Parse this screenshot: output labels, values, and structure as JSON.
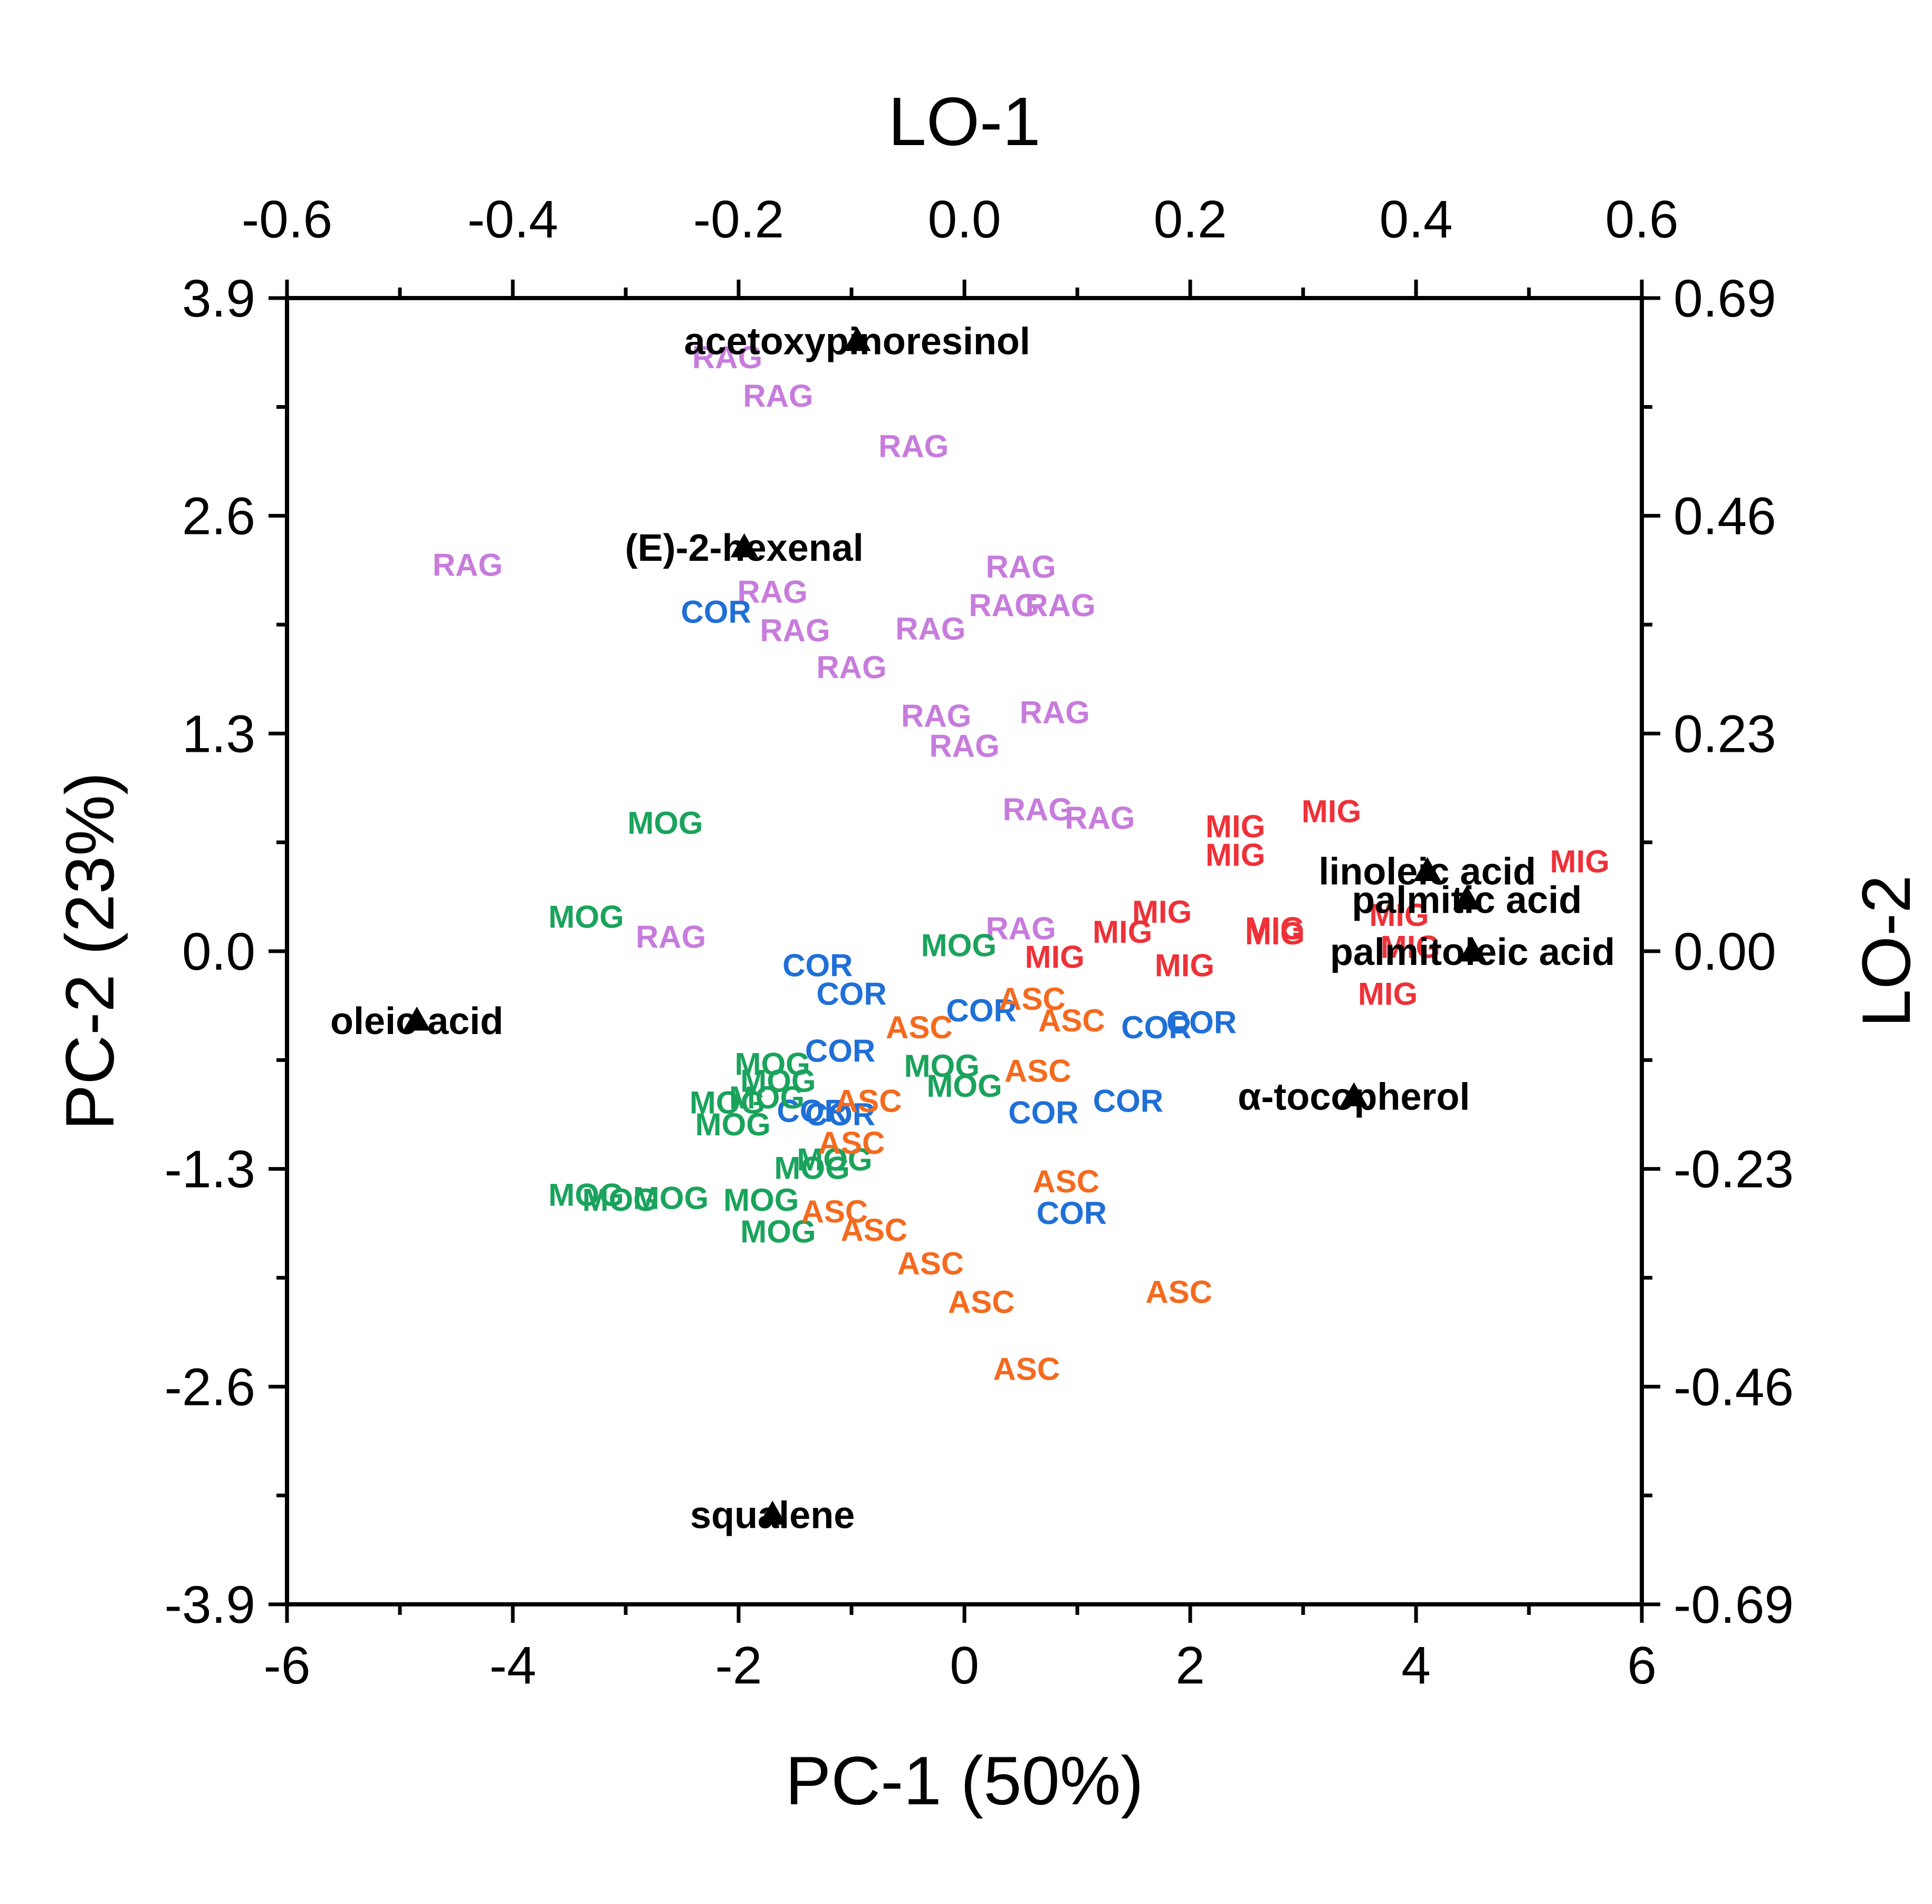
{
  "chart_data": {
    "type": "scatter",
    "title": "",
    "xlabel": "PC-1 (50%)",
    "ylabel": "PC-2 (23%)",
    "x2label": "LO-1",
    "y2label": "LO-2",
    "xlim": [
      -6,
      6
    ],
    "ylim": [
      -3.9,
      3.9
    ],
    "x2lim": [
      -0.6,
      0.6
    ],
    "y2lim": [
      -0.69,
      0.69
    ],
    "xticks": [
      "-6",
      "-4",
      "-2",
      "0",
      "2",
      "4",
      "6"
    ],
    "yticks": [
      "-3.9",
      "-2.6",
      "-1.3",
      "0.0",
      "1.3",
      "2.6",
      "3.9"
    ],
    "x2ticks": [
      "-0.6",
      "-0.4",
      "-0.2",
      "0.0",
      "0.2",
      "0.4",
      "0.6"
    ],
    "y2ticks": [
      "-0.69",
      "-0.46",
      "-0.23",
      "0.00",
      "0.23",
      "0.46",
      "0.69"
    ],
    "group_colors": {
      "RAG": "#c77cdc",
      "COR": "#1f6fd6",
      "MOG": "#1aa35c",
      "MIG": "#ee3138",
      "ASC": "#f46a1e"
    },
    "series": [
      {
        "name": "RAG",
        "x": [
          -2.1,
          -1.65,
          -0.45,
          -4.4,
          -1.7,
          -1.5,
          -0.3,
          -1.0,
          0.5,
          0.35,
          0.85,
          -0.25,
          0.8,
          0.0,
          0.65,
          1.2,
          0.5,
          -2.6
        ],
        "y": [
          3.55,
          3.32,
          3.02,
          2.31,
          2.15,
          1.92,
          1.93,
          1.7,
          2.3,
          2.07,
          2.07,
          1.41,
          1.43,
          1.23,
          0.85,
          0.8,
          0.14,
          0.09
        ]
      },
      {
        "name": "COR",
        "x": [
          -2.2,
          -1.3,
          -1.0,
          0.15,
          -1.1,
          1.7,
          2.1,
          -1.35,
          -1.1,
          0.7,
          1.45,
          0.95
        ],
        "y": [
          2.03,
          -0.08,
          -0.25,
          -0.35,
          -0.59,
          -0.45,
          -0.42,
          -0.95,
          -0.97,
          -0.96,
          -0.89,
          -1.56
        ]
      },
      {
        "name": "MOG",
        "x": [
          -2.65,
          -3.35,
          -0.05,
          -1.7,
          -1.65,
          -2.1,
          -1.75,
          -2.05,
          -0.2,
          0.0,
          -3.35,
          -3.05,
          -2.6,
          -1.8,
          -1.35,
          -1.15,
          -1.65
        ],
        "y": [
          0.77,
          0.21,
          0.04,
          -0.67,
          -0.77,
          -0.9,
          -0.87,
          -1.03,
          -0.68,
          -0.8,
          -1.45,
          -1.48,
          -1.47,
          -1.48,
          -1.29,
          -1.24,
          -1.67
        ]
      },
      {
        "name": "MIG",
        "x": [
          2.4,
          3.25,
          2.4,
          5.45,
          1.75,
          1.4,
          0.8,
          1.95,
          2.75,
          2.75,
          3.85,
          3.95,
          3.75
        ],
        "y": [
          0.75,
          0.84,
          0.58,
          0.54,
          0.24,
          0.12,
          -0.03,
          -0.08,
          0.14,
          0.11,
          0.22,
          0.03,
          -0.25
        ]
      },
      {
        "name": "ASC",
        "x": [
          0.6,
          0.95,
          -0.4,
          0.65,
          -0.85,
          -1.0,
          0.9,
          -1.15,
          -0.8,
          -0.3,
          0.15,
          0.55,
          1.9
        ],
        "y": [
          -0.28,
          -0.41,
          -0.45,
          -0.71,
          -0.89,
          -1.14,
          -1.37,
          -1.55,
          -1.66,
          -1.86,
          -2.09,
          -2.49,
          -2.03
        ]
      }
    ],
    "loadings": [
      {
        "label": "acetoxypinoresinol",
        "x": -0.095,
        "y": 0.645
      },
      {
        "label": "(E)-2-hexenal",
        "x": -0.195,
        "y": 0.427
      },
      {
        "label": "linoleic acid",
        "x": 0.41,
        "y": 0.085
      },
      {
        "label": "palmitic acid",
        "x": 0.445,
        "y": 0.055
      },
      {
        "label": "palmitoleic acid",
        "x": 0.45,
        "y": 0.0
      },
      {
        "label": "oleic acid",
        "x": -0.485,
        "y": -0.073
      },
      {
        "label": "α-tocopherol",
        "x": 0.345,
        "y": -0.153
      },
      {
        "label": "squalene",
        "x": -0.17,
        "y": -0.595
      }
    ]
  }
}
